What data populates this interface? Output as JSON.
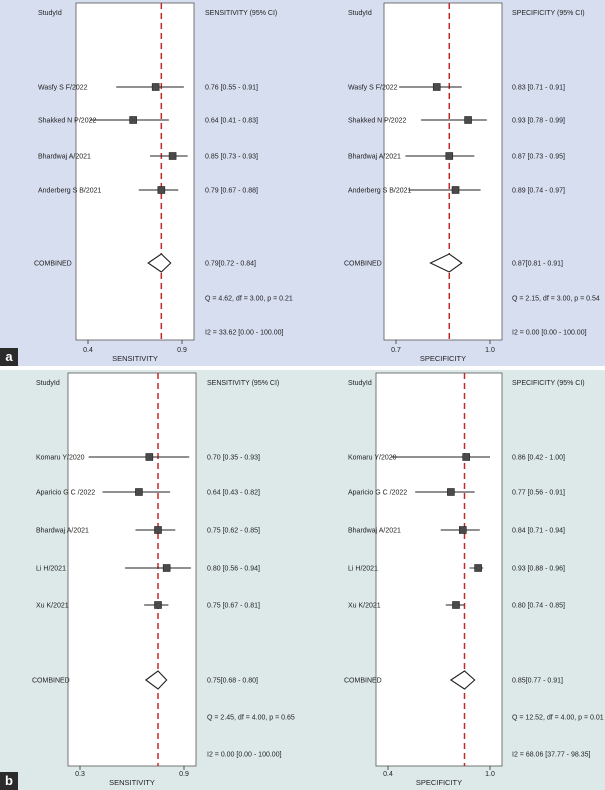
{
  "panels": [
    {
      "letter": "a",
      "plots": [
        {
          "col_study": "StudyId",
          "col_stat": "SENSITIVITY (95% CI)",
          "studies": [
            {
              "label": "Wasfy S F/2022",
              "est": 0.76,
              "lo": 0.55,
              "hi": 0.91,
              "ci_text": "0.76 [0.55 - 0.91]"
            },
            {
              "label": "Shakked N P/2022",
              "est": 0.64,
              "lo": 0.41,
              "hi": 0.83,
              "ci_text": "0.64 [0.41 - 0.83]"
            },
            {
              "label": "Bhardwaj A/2021",
              "est": 0.85,
              "lo": 0.73,
              "hi": 0.93,
              "ci_text": "0.85 [0.73 - 0.93]"
            },
            {
              "label": "Anderberg S B/2021",
              "est": 0.79,
              "lo": 0.67,
              "hi": 0.88,
              "ci_text": "0.79 [0.67 - 0.88]"
            }
          ],
          "combined": {
            "label": "COMBINED",
            "est": 0.79,
            "lo": 0.72,
            "hi": 0.84,
            "ci_text": "0.79[0.72 - 0.84]"
          },
          "q_text": "Q =  4.62, df = 3.00, p =  0.21",
          "i2_text": "I2 = 33.62 [0.00 - 100.00]",
          "axis": {
            "min": 0.4,
            "max": 0.9,
            "ticks": [
              {
                "v": 0.4,
                "label": "0.4"
              },
              {
                "v": 0.9,
                "label": "0.9"
              }
            ],
            "label": "SENSITIVITY"
          }
        },
        {
          "col_study": "StudyId",
          "col_stat": "SPECIFICITY (95% CI)",
          "studies": [
            {
              "label": "Wasfy S F/2022",
              "est": 0.83,
              "lo": 0.71,
              "hi": 0.91,
              "ci_text": "0.83 [0.71 - 0.91]"
            },
            {
              "label": "Shakked N P/2022",
              "est": 0.93,
              "lo": 0.78,
              "hi": 0.99,
              "ci_text": "0.93 [0.78 - 0.99]"
            },
            {
              "label": "Bhardwaj A/2021",
              "est": 0.87,
              "lo": 0.73,
              "hi": 0.95,
              "ci_text": "0.87 [0.73 - 0.95]"
            },
            {
              "label": "Anderberg S B/2021",
              "est": 0.89,
              "lo": 0.74,
              "hi": 0.97,
              "ci_text": "0.89 [0.74 - 0.97]"
            }
          ],
          "combined": {
            "label": "COMBINED",
            "est": 0.87,
            "lo": 0.81,
            "hi": 0.91,
            "ci_text": "0.87[0.81 - 0.91]"
          },
          "q_text": "Q =  2.15, df = 3.00, p =  0.54",
          "i2_text": "I2 = 0.00 [0.00 - 100.00]",
          "axis": {
            "min": 0.7,
            "max": 1.0,
            "ticks": [
              {
                "v": 0.7,
                "label": "0.7"
              },
              {
                "v": 1.0,
                "label": "1.0"
              }
            ],
            "label": "SPECIFICITY"
          }
        }
      ]
    },
    {
      "letter": "b",
      "plots": [
        {
          "col_study": "StudyId",
          "col_stat": "SENSITIVITY (95% CI)",
          "studies": [
            {
              "label": "Komaru Y/2020",
              "est": 0.7,
              "lo": 0.35,
              "hi": 0.93,
              "ci_text": "0.70 [0.35 - 0.93]"
            },
            {
              "label": "Aparicio G C /2022",
              "est": 0.64,
              "lo": 0.43,
              "hi": 0.82,
              "ci_text": "0.64 [0.43 - 0.82]"
            },
            {
              "label": "Bhardwaj A/2021",
              "est": 0.75,
              "lo": 0.62,
              "hi": 0.85,
              "ci_text": "0.75 [0.62 - 0.85]"
            },
            {
              "label": "Li H/2021",
              "est": 0.8,
              "lo": 0.56,
              "hi": 0.94,
              "ci_text": "0.80 [0.56 - 0.94]"
            },
            {
              "label": "Xu K/2021",
              "est": 0.75,
              "lo": 0.67,
              "hi": 0.81,
              "ci_text": "0.75 [0.67 - 0.81]"
            }
          ],
          "combined": {
            "label": "COMBINED",
            "est": 0.75,
            "lo": 0.68,
            "hi": 0.8,
            "ci_text": "0.75[0.68 - 0.80]"
          },
          "q_text": "Q =  2.45, df = 4.00, p =  0.65",
          "i2_text": "I2 = 0.00 [0.00 - 100.00]",
          "axis": {
            "min": 0.3,
            "max": 0.9,
            "ticks": [
              {
                "v": 0.3,
                "label": "0.3"
              },
              {
                "v": 0.9,
                "label": "0.9"
              }
            ],
            "label": "SENSITIVITY"
          }
        },
        {
          "col_study": "StudyId",
          "col_stat": "SPECIFICITY (95% CI)",
          "studies": [
            {
              "label": "Komaru Y/2020",
              "est": 0.86,
              "lo": 0.42,
              "hi": 1.0,
              "ci_text": "0.86 [0.42 - 1.00]"
            },
            {
              "label": "Aparicio G C /2022",
              "est": 0.77,
              "lo": 0.56,
              "hi": 0.91,
              "ci_text": "0.77 [0.56 - 0.91]"
            },
            {
              "label": "Bhardwaj A/2021",
              "est": 0.84,
              "lo": 0.71,
              "hi": 0.94,
              "ci_text": "0.84 [0.71 - 0.94]"
            },
            {
              "label": "Li H/2021",
              "est": 0.93,
              "lo": 0.88,
              "hi": 0.96,
              "ci_text": "0.93 [0.88 - 0.96]"
            },
            {
              "label": "Xu K/2021",
              "est": 0.8,
              "lo": 0.74,
              "hi": 0.85,
              "ci_text": "0.80 [0.74 - 0.85]"
            }
          ],
          "combined": {
            "label": "COMBINED",
            "est": 0.85,
            "lo": 0.77,
            "hi": 0.91,
            "ci_text": "0.85[0.77 - 0.91]"
          },
          "q_text": "Q = 12.52, df = 4.00, p =  0.01",
          "i2_text": "I2 = 68.06 [37.77 - 98.35]",
          "axis": {
            "min": 0.4,
            "max": 1.0,
            "ticks": [
              {
                "v": 0.4,
                "label": "0.4"
              },
              {
                "v": 1.0,
                "label": "1.0"
              }
            ],
            "label": "SPECIFICITY"
          }
        }
      ]
    }
  ],
  "colors": {
    "panel_a_bg": "#d7def0",
    "panel_b_bg": "#dde9e9",
    "reference_line": "#c62828",
    "marker": "#4a4a4a"
  }
}
